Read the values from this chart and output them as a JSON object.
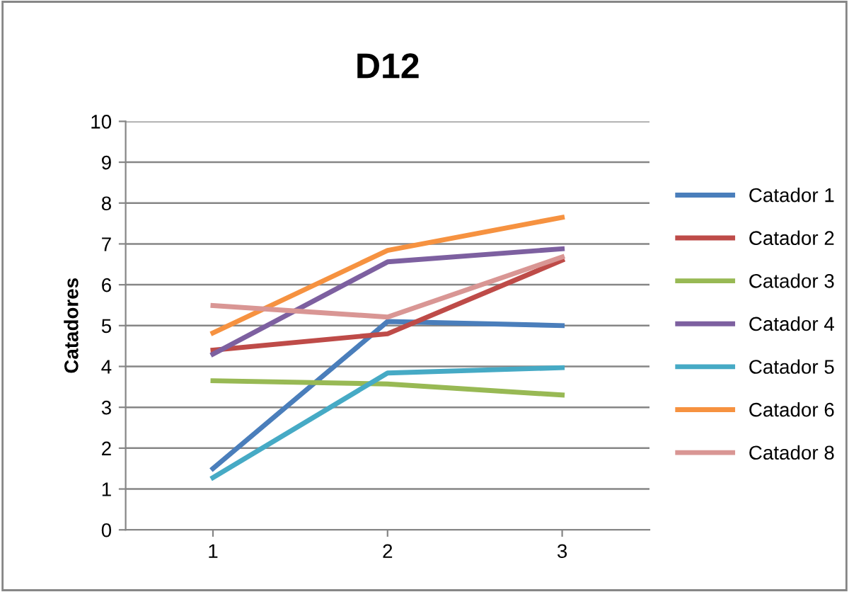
{
  "chart_data": {
    "type": "line",
    "title": "D12",
    "ylabel": "Catadores",
    "categories": [
      "1",
      "2",
      "3"
    ],
    "ylim": [
      0,
      10
    ],
    "yticks": [
      0,
      1,
      2,
      3,
      4,
      5,
      6,
      7,
      8,
      9,
      10
    ],
    "grid": "y",
    "legend": "right",
    "marker": "none",
    "line_style": "solid",
    "series": [
      {
        "name": "Catador 1",
        "color": "#4a7ebb",
        "values": [
          1.5,
          5.1,
          5.0
        ]
      },
      {
        "name": "Catador 2",
        "color": "#be4b48",
        "values": [
          4.4,
          4.8,
          6.6
        ]
      },
      {
        "name": "Catador 3",
        "color": "#98b954",
        "values": [
          3.65,
          3.57,
          3.3
        ]
      },
      {
        "name": "Catador 4",
        "color": "#7d60a0",
        "values": [
          4.3,
          6.56,
          6.88
        ]
      },
      {
        "name": "Catador 5",
        "color": "#46aac5",
        "values": [
          1.28,
          3.84,
          3.97
        ]
      },
      {
        "name": "Catador 6",
        "color": "#f69240",
        "values": [
          4.82,
          6.84,
          7.65
        ]
      },
      {
        "name": "Catador 8",
        "color": "#d99694",
        "values": [
          5.49,
          5.21,
          6.68
        ]
      }
    ]
  }
}
